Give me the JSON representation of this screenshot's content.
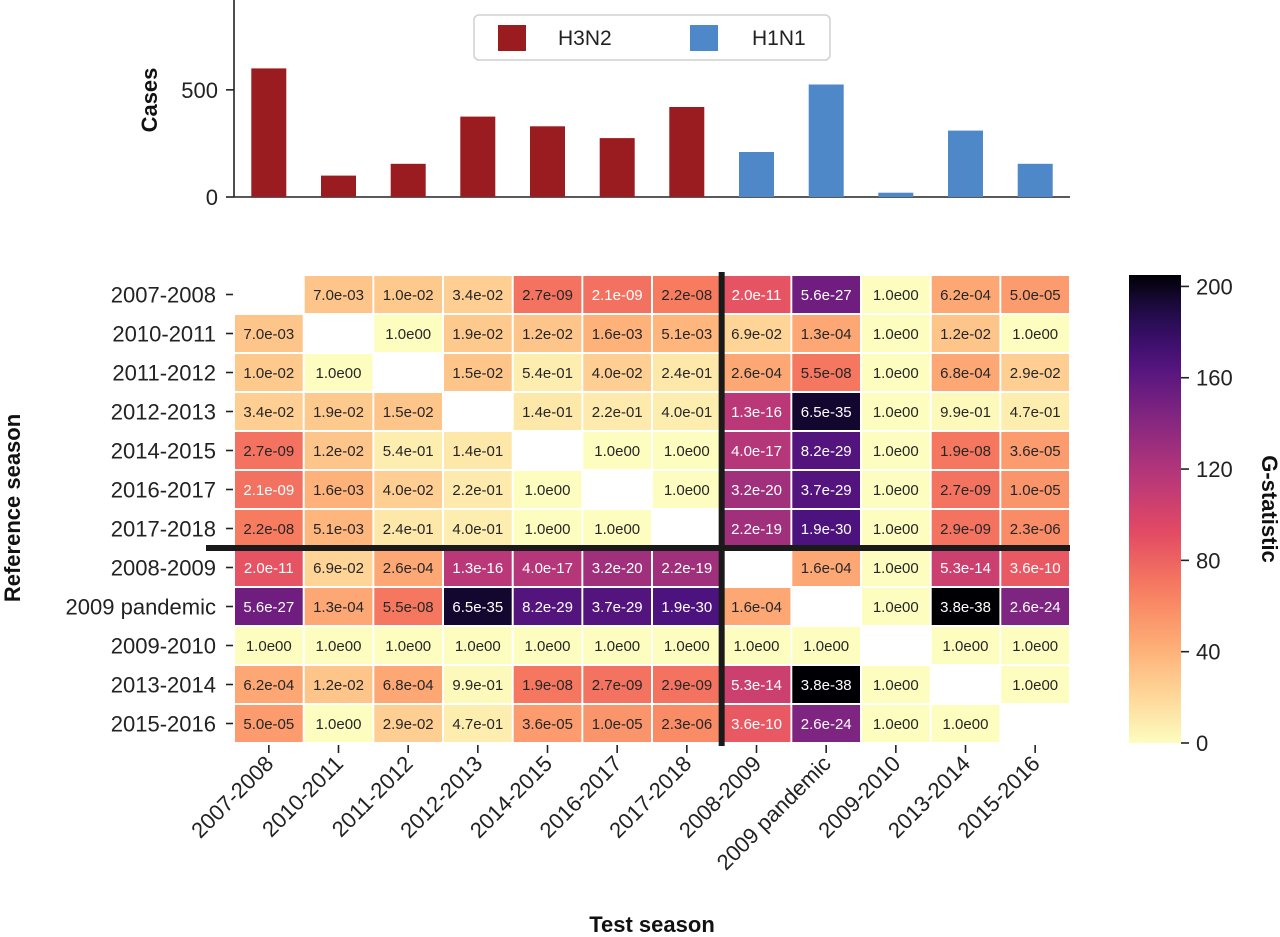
{
  "chart_data": [
    {
      "type": "bar",
      "ylabel": "Cases",
      "xlabel": "",
      "ylim": [
        0,
        850
      ],
      "yticks": [
        0,
        500
      ],
      "categories": [
        "2007-2008",
        "2010-2011",
        "2011-2012",
        "2012-2013",
        "2014-2015",
        "2016-2017",
        "2017-2018",
        "2008-2009",
        "2009 pandemic",
        "2009-2010",
        "2013-2014",
        "2015-2016"
      ],
      "values": [
        600,
        100,
        155,
        375,
        330,
        275,
        420,
        210,
        525,
        20,
        310,
        155
      ],
      "subtype": [
        "H3N2",
        "H3N2",
        "H3N2",
        "H3N2",
        "H3N2",
        "H3N2",
        "H3N2",
        "H1N1",
        "H1N1",
        "H1N1",
        "H1N1",
        "H1N1"
      ],
      "legend": {
        "placement": "top-center",
        "entries": [
          {
            "name": "H3N2",
            "color": "#9b1c20"
          },
          {
            "name": "H1N1",
            "color": "#4f88c9"
          }
        ]
      }
    },
    {
      "type": "heatmap",
      "xlabel": "Test season",
      "ylabel": "Reference season",
      "colorbar_label": "G-statistic",
      "colorbar_range": [
        0,
        205
      ],
      "colorbar_ticks": [
        0,
        40,
        80,
        120,
        160,
        200
      ],
      "colormap": "magma_r",
      "label_colors": {
        "H3N2": "#9b1c20",
        "H1N1": "#4f88c9"
      },
      "divider_after_index": 7,
      "rows": [
        "2007-2008",
        "2010-2011",
        "2011-2012",
        "2012-2013",
        "2014-2015",
        "2016-2017",
        "2017-2018",
        "2008-2009",
        "2009 pandemic",
        "2009-2010",
        "2013-2014",
        "2015-2016"
      ],
      "cols": [
        "2007-2008",
        "2010-2011",
        "2011-2012",
        "2012-2013",
        "2014-2015",
        "2016-2017",
        "2017-2018",
        "2008-2009",
        "2009 pandemic",
        "2009-2010",
        "2013-2014",
        "2015-2016"
      ],
      "row_subtype": [
        "H3N2",
        "H3N2",
        "H3N2",
        "H3N2",
        "H3N2",
        "H3N2",
        "H3N2",
        "H1N1",
        "H1N1",
        "H1N1",
        "H1N1",
        "H1N1"
      ],
      "cells": [
        [
          "",
          "7.0e-03",
          "1.0e-02",
          "3.4e-02",
          "2.7e-09",
          "2.1e-09",
          "2.2e-08",
          "2.0e-11",
          "5.6e-27",
          "1.0e00",
          "6.2e-04",
          "5.0e-05"
        ],
        [
          "7.0e-03",
          "",
          "1.0e00",
          "1.9e-02",
          "1.2e-02",
          "1.6e-03",
          "5.1e-03",
          "6.9e-02",
          "1.3e-04",
          "1.0e00",
          "1.2e-02",
          "1.0e00"
        ],
        [
          "1.0e-02",
          "1.0e00",
          "",
          "1.5e-02",
          "5.4e-01",
          "4.0e-02",
          "2.4e-01",
          "2.6e-04",
          "5.5e-08",
          "1.0e00",
          "6.8e-04",
          "2.9e-02"
        ],
        [
          "3.4e-02",
          "1.9e-02",
          "1.5e-02",
          "",
          "1.4e-01",
          "2.2e-01",
          "4.0e-01",
          "1.3e-16",
          "6.5e-35",
          "1.0e00",
          "9.9e-01",
          "4.7e-01"
        ],
        [
          "2.7e-09",
          "1.2e-02",
          "5.4e-01",
          "1.4e-01",
          "",
          "1.0e00",
          "1.0e00",
          "4.0e-17",
          "8.2e-29",
          "1.0e00",
          "1.9e-08",
          "3.6e-05"
        ],
        [
          "2.1e-09",
          "1.6e-03",
          "4.0e-02",
          "2.2e-01",
          "1.0e00",
          "",
          "1.0e00",
          "3.2e-20",
          "3.7e-29",
          "1.0e00",
          "2.7e-09",
          "1.0e-05"
        ],
        [
          "2.2e-08",
          "5.1e-03",
          "2.4e-01",
          "4.0e-01",
          "1.0e00",
          "1.0e00",
          "",
          "2.2e-19",
          "1.9e-30",
          "1.0e00",
          "2.9e-09",
          "2.3e-06"
        ],
        [
          "2.0e-11",
          "6.9e-02",
          "2.6e-04",
          "1.3e-16",
          "4.0e-17",
          "3.2e-20",
          "2.2e-19",
          "",
          "1.6e-04",
          "1.0e00",
          "5.3e-14",
          "3.6e-10"
        ],
        [
          "5.6e-27",
          "1.3e-04",
          "5.5e-08",
          "6.5e-35",
          "8.2e-29",
          "3.7e-29",
          "1.9e-30",
          "1.6e-04",
          "",
          "1.0e00",
          "3.8e-38",
          "2.6e-24"
        ],
        [
          "1.0e00",
          "1.0e00",
          "1.0e00",
          "1.0e00",
          "1.0e00",
          "1.0e00",
          "1.0e00",
          "1.0e00",
          "1.0e00",
          "",
          "1.0e00",
          "1.0e00"
        ],
        [
          "6.2e-04",
          "1.2e-02",
          "6.8e-04",
          "9.9e-01",
          "1.9e-08",
          "2.7e-09",
          "2.9e-09",
          "5.3e-14",
          "3.8e-38",
          "1.0e00",
          "",
          "1.0e00"
        ],
        [
          "5.0e-05",
          "1.0e00",
          "2.9e-02",
          "4.7e-01",
          "3.6e-05",
          "1.0e-05",
          "2.3e-06",
          "3.6e-10",
          "2.6e-24",
          "1.0e00",
          "1.0e00",
          ""
        ]
      ],
      "g_values": [
        [
          null,
          30,
          28,
          25,
          72,
          73,
          68,
          88,
          152,
          0,
          45,
          52
        ],
        [
          30,
          null,
          0,
          28,
          30,
          40,
          38,
          22,
          45,
          0,
          30,
          0
        ],
        [
          28,
          0,
          null,
          30,
          8,
          25,
          12,
          45,
          70,
          0,
          45,
          25
        ],
        [
          25,
          28,
          30,
          null,
          12,
          10,
          8,
          115,
          195,
          0,
          2,
          8
        ],
        [
          72,
          30,
          8,
          12,
          null,
          0,
          0,
          118,
          165,
          0,
          70,
          52
        ],
        [
          73,
          40,
          25,
          10,
          0,
          null,
          0,
          128,
          165,
          0,
          72,
          55
        ],
        [
          68,
          38,
          12,
          8,
          0,
          0,
          null,
          128,
          168,
          0,
          72,
          60
        ],
        [
          88,
          22,
          45,
          115,
          118,
          128,
          128,
          null,
          45,
          0,
          105,
          85
        ],
        [
          152,
          45,
          70,
          195,
          165,
          165,
          168,
          45,
          null,
          0,
          205,
          145
        ],
        [
          0,
          0,
          0,
          0,
          0,
          0,
          0,
          0,
          0,
          null,
          0,
          0
        ],
        [
          45,
          30,
          45,
          2,
          70,
          72,
          72,
          105,
          205,
          0,
          null,
          0
        ],
        [
          52,
          0,
          25,
          8,
          52,
          55,
          60,
          85,
          145,
          0,
          0,
          null
        ]
      ]
    }
  ]
}
